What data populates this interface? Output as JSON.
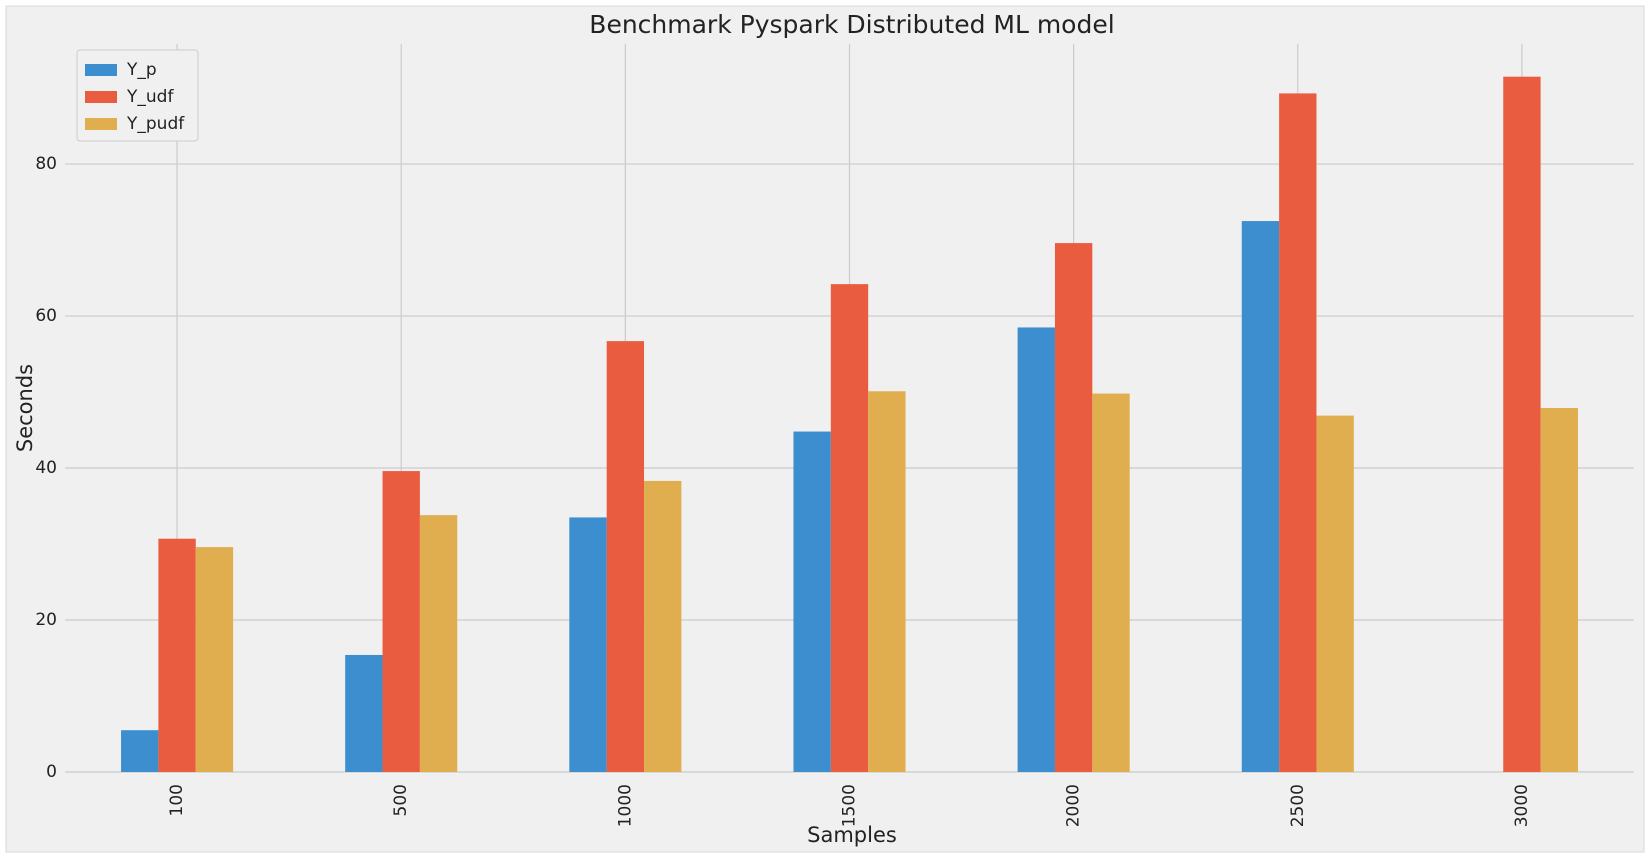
{
  "chart_data": {
    "type": "bar",
    "title": "Benchmark Pyspark Distributed ML model",
    "x_label": "Samples",
    "y_label": "Seconds",
    "categories": [
      "100",
      "500",
      "1000",
      "1500",
      "2000",
      "2500",
      "3000"
    ],
    "series": [
      {
        "name": "Y_p",
        "color": "#3d8ecf",
        "values": [
          5.5,
          15.4,
          33.5,
          44.8,
          58.5,
          72.5,
          null
        ]
      },
      {
        "name": "Y_udf",
        "color": "#e95c3f",
        "values": [
          30.7,
          39.6,
          56.7,
          64.2,
          69.6,
          89.3,
          91.5
        ]
      },
      {
        "name": "Y_pudf",
        "color": "#e0ae4f",
        "values": [
          29.6,
          33.8,
          38.3,
          50.1,
          49.8,
          46.9,
          47.9
        ]
      }
    ],
    "ylim": [
      0,
      95.8
    ],
    "yticks": [
      0,
      20,
      40,
      60,
      80
    ],
    "grid": true,
    "legend": "upper-left"
  }
}
